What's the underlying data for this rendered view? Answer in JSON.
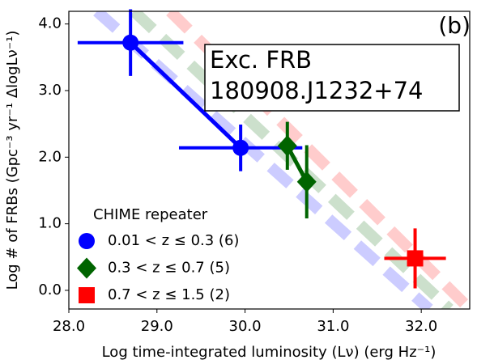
{
  "chart_data": {
    "type": "scatter",
    "panel_label": "(b)",
    "annotation": [
      "Exc. FRB",
      "180908.J1232+74"
    ],
    "xlabel": "Log time-integrated luminosity (Lν) (erg Hz⁻¹)",
    "ylabel": "Log # of FRBs (Gpc⁻³ yr⁻¹ ΔlogLν⁻¹)",
    "xlim": [
      28.0,
      32.55
    ],
    "ylim": [
      -0.28,
      4.19
    ],
    "xticks": [
      {
        "value": 28,
        "label": "28.0"
      },
      {
        "value": 29,
        "label": "29.0"
      },
      {
        "value": 30,
        "label": "30.0"
      },
      {
        "value": 31,
        "label": "31.0"
      },
      {
        "value": 32,
        "label": "32.0"
      }
    ],
    "yticks": [
      {
        "value": 0,
        "label": "0.0"
      },
      {
        "value": 1,
        "label": "1.0"
      },
      {
        "value": 2,
        "label": "2.0"
      },
      {
        "value": 3,
        "label": "3.0"
      },
      {
        "value": 4,
        "label": "4.0"
      }
    ],
    "legend_title": "CHIME repeater",
    "legend_position": "lower left",
    "series": [
      {
        "name": "0.01 < z ≤ 0.3 (6)",
        "color": "#0000ff",
        "marker": "circle",
        "x": [
          28.7,
          29.95
        ],
        "values": [
          3.72,
          2.14
        ],
        "xerr": [
          0.6,
          0.7
        ],
        "yerr": [
          0.5,
          0.35
        ]
      },
      {
        "name": "0.3 < z ≤ 0.7 (5)",
        "color": "#006400",
        "marker": "diamond",
        "x": [
          30.48,
          30.7
        ],
        "values": [
          2.17,
          1.63
        ],
        "yerr": [
          0.36,
          0.55
        ]
      },
      {
        "name": "0.7 < z ≤ 1.5 (2)",
        "color": "#ff0000",
        "marker": "square",
        "x": [
          31.93
        ],
        "values": [
          0.48
        ],
        "xerr": [
          0.35
        ],
        "yerr": [
          0.45
        ]
      }
    ],
    "model_lines": [
      {
        "color": "#0000ff",
        "x": [
          28.32,
          32.09
        ],
        "values": [
          4.19,
          -0.28
        ]
      },
      {
        "color": "#006400",
        "x": [
          28.74,
          32.32
        ],
        "values": [
          4.19,
          -0.28
        ]
      },
      {
        "color": "#ff0000",
        "x": [
          29.15,
          32.55
        ],
        "values": [
          4.19,
          -0.28
        ]
      }
    ]
  }
}
